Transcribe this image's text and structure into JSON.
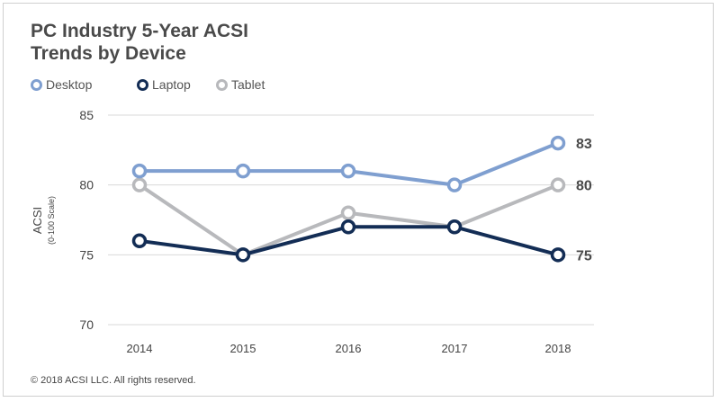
{
  "chart_data": {
    "type": "line",
    "title": "PC Industry 5-Year ACSI Trends by Device",
    "ylabel": "ACSI",
    "ylabel_sub": "(0-100 Scale)",
    "x": [
      "2014",
      "2015",
      "2016",
      "2017",
      "2018"
    ],
    "ylim": [
      70,
      85
    ],
    "yticks": [
      70,
      75,
      80,
      85
    ],
    "grid": true,
    "legend_placement": "top-left",
    "series": [
      {
        "name": "Desktop",
        "color": "#7f9fd0",
        "values": [
          81,
          81,
          81,
          80,
          83
        ],
        "end_label": "83"
      },
      {
        "name": "Laptop",
        "color": "#132d55",
        "values": [
          76,
          75,
          77,
          77,
          75
        ],
        "end_label": "75"
      },
      {
        "name": "Tablet",
        "color": "#b8b9bc",
        "values": [
          80,
          75,
          78,
          77,
          80
        ],
        "end_label": "80"
      }
    ]
  },
  "title_line1": "PC Industry 5-Year ACSI",
  "title_line2": "Trends by Device",
  "copyright": "© 2018 ACSI LLC. All rights reserved."
}
